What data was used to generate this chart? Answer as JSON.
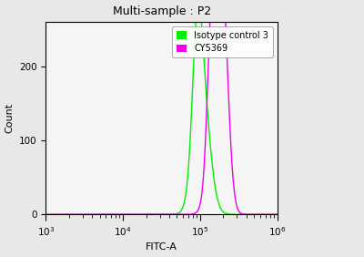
{
  "title": "Multi-sample : P2",
  "xlabel": "FITC-A",
  "ylabel": "Count",
  "xlim_log": [
    3,
    6
  ],
  "ylim": [
    0,
    260
  ],
  "yticks": [
    0,
    100,
    200
  ],
  "legend_labels": [
    "Isotype control 3",
    "CY5369"
  ],
  "legend_colors": [
    "#00ee00",
    "#ee00ee"
  ],
  "green_peak_log": 5.02,
  "green_peak_height": 170,
  "green_sigma": 0.1,
  "green_peak2_log": 4.96,
  "green_peak2_height": 140,
  "green_peak2_sigma": 0.06,
  "magenta_peak_log": 5.22,
  "magenta_peak_height": 235,
  "magenta_sigma": 0.09,
  "magenta_peak2_log": 5.3,
  "magenta_peak2_height": 160,
  "magenta_peak2_sigma": 0.07,
  "magenta_peak3_log": 5.14,
  "magenta_peak3_height": 120,
  "magenta_peak3_sigma": 0.05,
  "background_color": "#e8e8e8",
  "plot_bg_color": "#f5f5f5",
  "line_width": 1.0
}
